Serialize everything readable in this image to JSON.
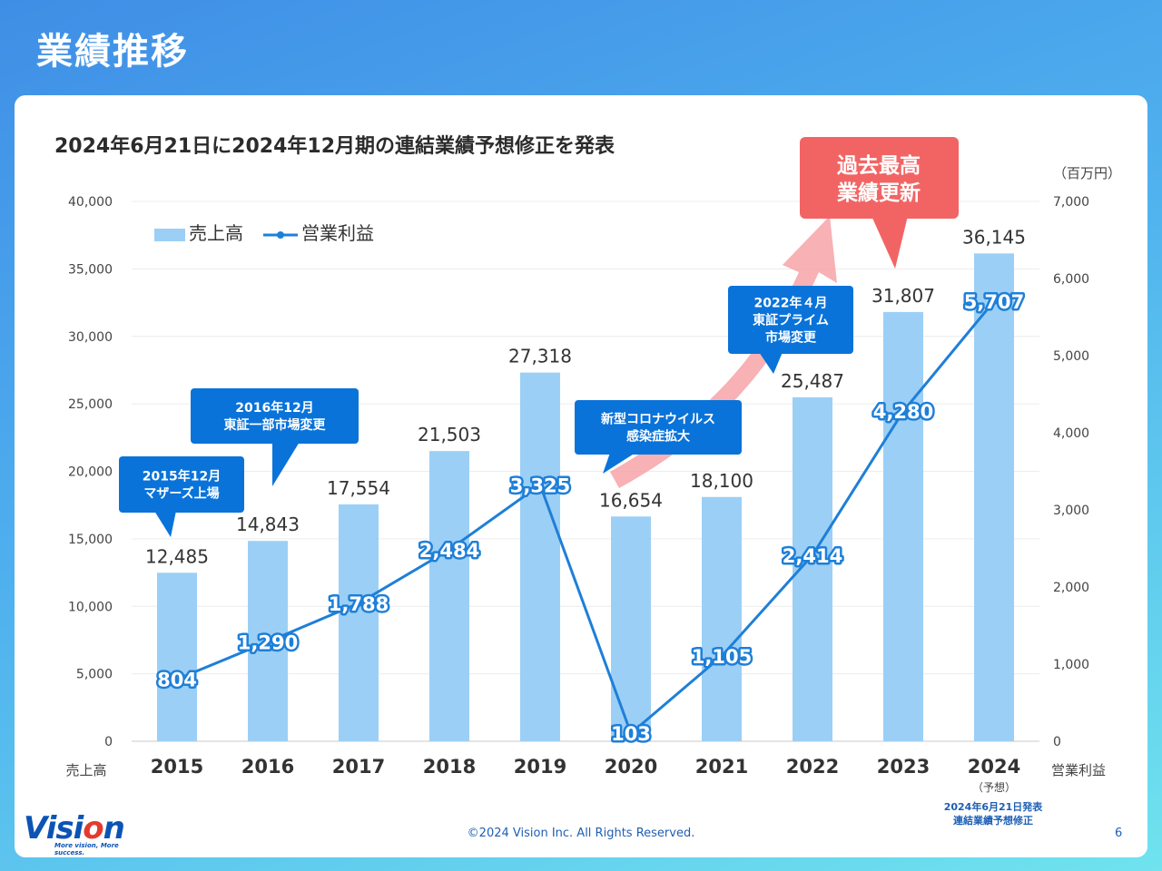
{
  "page": {
    "title": "業績推移",
    "subtitle": "2024年6月21日に2024年12月期の連結業績予想修正を発表",
    "copyright": "©2024 Vision Inc. All Rights Reserved.",
    "page_number": "6",
    "logo_text": "Vision",
    "logo_tagline": "More vision, More success."
  },
  "colors": {
    "bar": "#9ccff5",
    "line": "#1e7fd8",
    "callout": "#0a73d9",
    "highlight": "#f26464",
    "arrow": "#f7a3a7"
  },
  "chart_data": {
    "type": "bar",
    "categories": [
      "2015",
      "2016",
      "2017",
      "2018",
      "2019",
      "2020",
      "2021",
      "2022",
      "2023",
      "2024"
    ],
    "category_subtitle": {
      "2024": "（予想）"
    },
    "series": [
      {
        "name": "売上高",
        "type": "bar",
        "axis": "left",
        "values": [
          12485,
          14843,
          17554,
          21503,
          27318,
          16654,
          18100,
          25487,
          31807,
          36145
        ],
        "labels": [
          "12,485",
          "14,843",
          "17,554",
          "21,503",
          "27,318",
          "16,654",
          "18,100",
          "25,487",
          "31,807",
          "36,145"
        ]
      },
      {
        "name": "営業利益",
        "type": "line",
        "axis": "right",
        "values": [
          804,
          1290,
          1788,
          2484,
          3325,
          103,
          1105,
          2414,
          4280,
          5707
        ],
        "labels": [
          "804",
          "1,290",
          "1,788",
          "2,484",
          "3,325",
          "103",
          "1,105",
          "2,414",
          "4,280",
          "5,707"
        ]
      }
    ],
    "y_left": {
      "ylim": [
        0,
        40000
      ],
      "ticks": [
        0,
        5000,
        10000,
        15000,
        20000,
        25000,
        30000,
        35000,
        40000
      ],
      "tick_labels": [
        "0",
        "5,000",
        "10,000",
        "15,000",
        "20,000",
        "25,000",
        "30,000",
        "35,000",
        "40,000"
      ],
      "title": "売上高"
    },
    "y_right": {
      "ylim": [
        0,
        7000
      ],
      "ticks": [
        0,
        1000,
        2000,
        3000,
        4000,
        5000,
        6000,
        7000
      ],
      "tick_labels": [
        "0",
        "1,000",
        "2,000",
        "3,000",
        "4,000",
        "5,000",
        "6,000",
        "7,000"
      ],
      "title": "営業利益",
      "unit": "（百万円）"
    },
    "legend_position": "top-left",
    "annotations": [
      {
        "category": "2015",
        "lines": [
          "2015年12月",
          "マザーズ上場"
        ]
      },
      {
        "category": "2016",
        "lines": [
          "2016年12月",
          "東証一部市場変更"
        ]
      },
      {
        "category": "2020",
        "lines": [
          "新型コロナウイルス",
          "感染症拡大"
        ]
      },
      {
        "category": "2022",
        "lines": [
          "2022年４月",
          "東証プライム",
          "市場変更"
        ]
      }
    ],
    "highlight": {
      "lines": [
        "過去最高",
        "業績更新"
      ]
    },
    "note": [
      "2024年6月21日発表",
      "連結業績予想修正"
    ]
  }
}
